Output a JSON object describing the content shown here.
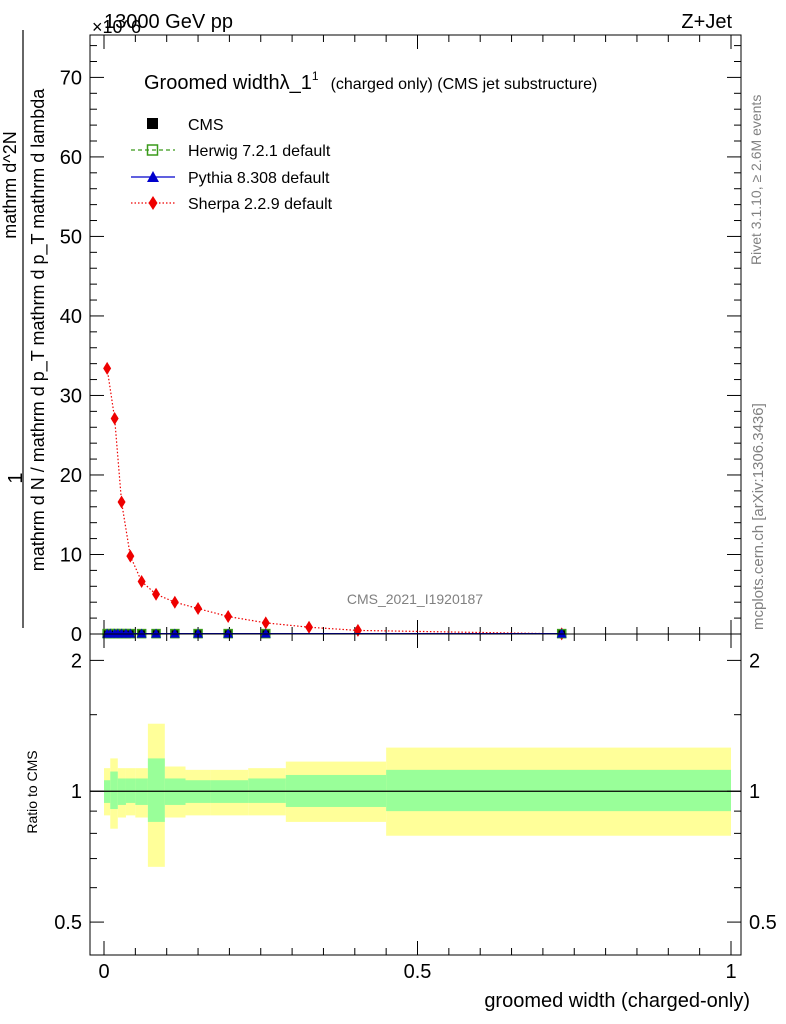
{
  "header": {
    "energy": "13000 GeV pp",
    "process": "Z+Jet",
    "exponent": "×10^6"
  },
  "side_labels": {
    "rivet": "Rivet 3.1.10, ≥ 2.6M events",
    "mcplots": "mcplots.cern.ch [arXiv:1306.3436]"
  },
  "colors": {
    "cms": "#000000",
    "herwig": "#3a9a1a",
    "pythia": "#0000cc",
    "sherpa": "#ee0000",
    "band_outer": "#ffff99",
    "band_inner": "#99ff99"
  },
  "chart_data": [
    {
      "type": "line",
      "title_main": "Groomed width",
      "title_symbol": "λ_1",
      "title_sup": "1",
      "title_suffix": "(charged only) (CMS jet substructure)",
      "watermark": "CMS_2021_I1920187",
      "ylabel_line1": "1",
      "ylabel_line2": "mathrm d N / mathrm d p_T mathrm d p_T mathrm d lambda",
      "ylabel_numerator": "mathrm d^2N",
      "ylabel_denominator": "mathrm d N / mathrm d p_T mathrm d p_T mathrm d lambda",
      "yaxis_scale_label": "×10^6",
      "xlim": [
        0,
        1
      ],
      "ylim": [
        0,
        75
      ],
      "y_ticks": [
        0,
        10,
        20,
        30,
        40,
        50,
        60,
        70
      ],
      "legend": [
        "CMS",
        "Herwig 7.2.1 default",
        "Pythia 8.308 default",
        "Sherpa 2.2.9 default"
      ],
      "legend_position": "top-left",
      "series": [
        {
          "name": "Sherpa 2.2.9 default",
          "style": "dotted",
          "marker": "diamond",
          "x": [
            0.005,
            0.017,
            0.028,
            0.042,
            0.06,
            0.083,
            0.113,
            0.15,
            0.198,
            0.258,
            0.327,
            0.405,
            0.73
          ],
          "y": [
            33.4,
            27.1,
            16.6,
            9.8,
            6.6,
            5.0,
            4.0,
            3.2,
            2.2,
            1.4,
            0.85,
            0.45,
            0.02
          ]
        },
        {
          "name": "CMS",
          "style": "none",
          "marker": "square",
          "x": [
            0.005,
            0.01,
            0.017,
            0.022,
            0.028,
            0.035,
            0.042,
            0.06,
            0.083,
            0.113,
            0.15,
            0.198,
            0.258,
            0.73
          ],
          "y": [
            0.05,
            0.05,
            0.05,
            0.05,
            0.05,
            0.05,
            0.05,
            0.05,
            0.05,
            0.05,
            0.05,
            0.05,
            0.05,
            0.05
          ]
        },
        {
          "name": "Herwig 7.2.1 default",
          "style": "dashed",
          "marker": "open-square",
          "x": [
            0.005,
            0.01,
            0.017,
            0.022,
            0.028,
            0.035,
            0.042,
            0.06,
            0.083,
            0.113,
            0.15,
            0.198,
            0.258,
            0.73
          ],
          "y": [
            0.05,
            0.05,
            0.05,
            0.05,
            0.05,
            0.05,
            0.05,
            0.05,
            0.05,
            0.05,
            0.05,
            0.05,
            0.05,
            0.05
          ]
        },
        {
          "name": "Pythia 8.308 default",
          "style": "solid",
          "marker": "triangle",
          "x": [
            0.005,
            0.01,
            0.017,
            0.022,
            0.028,
            0.035,
            0.042,
            0.06,
            0.083,
            0.113,
            0.15,
            0.198,
            0.258,
            0.73
          ],
          "y": [
            0.05,
            0.05,
            0.05,
            0.05,
            0.05,
            0.05,
            0.05,
            0.05,
            0.05,
            0.05,
            0.05,
            0.05,
            0.05,
            0.05
          ]
        }
      ]
    },
    {
      "type": "area",
      "ylabel": "Ratio to CMS",
      "xlabel": "groomed width (charged-only)",
      "xlim": [
        0,
        1
      ],
      "ylim": [
        0.42,
        2.3
      ],
      "y_scale": "log",
      "x_ticks": [
        0,
        0.5,
        1
      ],
      "x_tick_labels": [
        "0",
        "0.5",
        "1"
      ],
      "y_ticks": [
        0.5,
        1,
        2
      ],
      "y_tick_labels": [
        "0.5",
        "1",
        "2"
      ],
      "reference": 1,
      "bins": [
        {
          "x0": 0.0,
          "x1": 0.01,
          "inner": [
            0.94,
            1.06
          ],
          "outer": [
            0.88,
            1.13
          ]
        },
        {
          "x0": 0.01,
          "x1": 0.022,
          "inner": [
            0.91,
            1.11
          ],
          "outer": [
            0.82,
            1.19
          ]
        },
        {
          "x0": 0.022,
          "x1": 0.035,
          "inner": [
            0.93,
            1.07
          ],
          "outer": [
            0.87,
            1.13
          ]
        },
        {
          "x0": 0.035,
          "x1": 0.05,
          "inner": [
            0.94,
            1.07
          ],
          "outer": [
            0.88,
            1.13
          ]
        },
        {
          "x0": 0.05,
          "x1": 0.07,
          "inner": [
            0.93,
            1.07
          ],
          "outer": [
            0.87,
            1.13
          ]
        },
        {
          "x0": 0.07,
          "x1": 0.097,
          "inner": [
            0.85,
            1.19
          ],
          "outer": [
            0.67,
            1.43
          ]
        },
        {
          "x0": 0.097,
          "x1": 0.13,
          "inner": [
            0.93,
            1.07
          ],
          "outer": [
            0.87,
            1.14
          ]
        },
        {
          "x0": 0.13,
          "x1": 0.17,
          "inner": [
            0.94,
            1.06
          ],
          "outer": [
            0.88,
            1.12
          ]
        },
        {
          "x0": 0.17,
          "x1": 0.23,
          "inner": [
            0.94,
            1.06
          ],
          "outer": [
            0.88,
            1.12
          ]
        },
        {
          "x0": 0.23,
          "x1": 0.29,
          "inner": [
            0.94,
            1.07
          ],
          "outer": [
            0.88,
            1.13
          ]
        },
        {
          "x0": 0.29,
          "x1": 0.45,
          "inner": [
            0.92,
            1.09
          ],
          "outer": [
            0.85,
            1.17
          ]
        },
        {
          "x0": 0.45,
          "x1": 1.0,
          "inner": [
            0.9,
            1.12
          ],
          "outer": [
            0.79,
            1.26
          ]
        }
      ]
    }
  ]
}
